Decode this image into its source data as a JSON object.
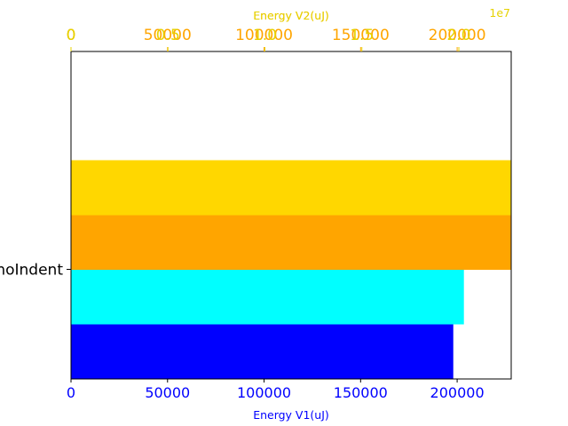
{
  "chart_data": {
    "type": "bar",
    "orientation": "horizontal",
    "categories": [
      "noIndent"
    ],
    "bottom_axis": {
      "label": "Energy V1(uJ)",
      "color": "#0000ff",
      "xlim": [
        0,
        228000
      ],
      "ticks": [
        0,
        50000,
        100000,
        150000,
        200000
      ],
      "tick_labels": [
        "0",
        "50000",
        "100000",
        "150000",
        "200000"
      ]
    },
    "top_axes": [
      {
        "label": "Energy V2(uJ)",
        "color": "#ffa500",
        "xlim": [
          0,
          228000
        ],
        "ticks": [
          0,
          50000,
          100000,
          150000,
          200000
        ],
        "tick_labels": [
          "0",
          "50000",
          "100000",
          "150000",
          "200000"
        ]
      },
      {
        "label": "Energy V2(uJ)",
        "color": "#e6d200",
        "xlim": [
          0,
          22700000
        ],
        "ticks": [
          0,
          5000000,
          10000000,
          15000000,
          20000000
        ],
        "tick_labels": [
          "0",
          "0.5",
          "1.0",
          "1.5",
          "2.0"
        ],
        "offset_label": "1e7"
      }
    ],
    "series": [
      {
        "color": "#0000ff",
        "values": [
          198000
        ]
      },
      {
        "color": "#00ffff",
        "values": [
          203500
        ]
      },
      {
        "color": "#ffa500",
        "values": [
          228000
        ]
      },
      {
        "color": "#ffd700",
        "values": [
          228000
        ]
      }
    ]
  }
}
